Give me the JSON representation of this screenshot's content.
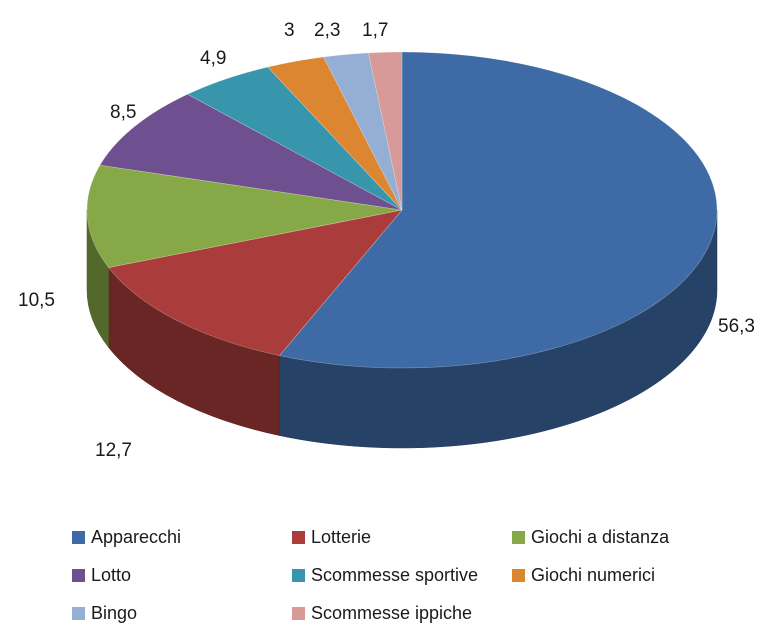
{
  "chart_data": {
    "type": "pie",
    "categories": [
      "Apparecchi",
      "Lotterie",
      "Giochi a distanza",
      "Lotto",
      "Scommesse sportive",
      "Giochi numerici",
      "Bingo",
      "Scommesse ippiche"
    ],
    "values": [
      56.3,
      12.7,
      10.5,
      8.5,
      4.9,
      3,
      2.3,
      1.7
    ],
    "value_labels": [
      "56,3",
      "12,7",
      "10,5",
      "8,5",
      "4,9",
      "3",
      "2,3",
      "1,7"
    ],
    "colors": [
      "#3e6aa5",
      "#aa3d3b",
      "#86a846",
      "#6e4f8f",
      "#3896ac",
      "#dc8632",
      "#94aed4",
      "#d89a99"
    ],
    "title": "",
    "legend_position": "bottom",
    "style": "3d-pie"
  },
  "legend": [
    {
      "label": "Apparecchi",
      "color": "#3e6aa5"
    },
    {
      "label": "Lotterie",
      "color": "#aa3d3b"
    },
    {
      "label": "Giochi a distanza",
      "color": "#86a846"
    },
    {
      "label": "Lotto",
      "color": "#6e4f8f"
    },
    {
      "label": "Scommesse sportive",
      "color": "#3896ac"
    },
    {
      "label": "Giochi numerici",
      "color": "#dc8632"
    },
    {
      "label": "Bingo",
      "color": "#94aed4"
    },
    {
      "label": "Scommesse ippiche",
      "color": "#d89a99"
    }
  ]
}
